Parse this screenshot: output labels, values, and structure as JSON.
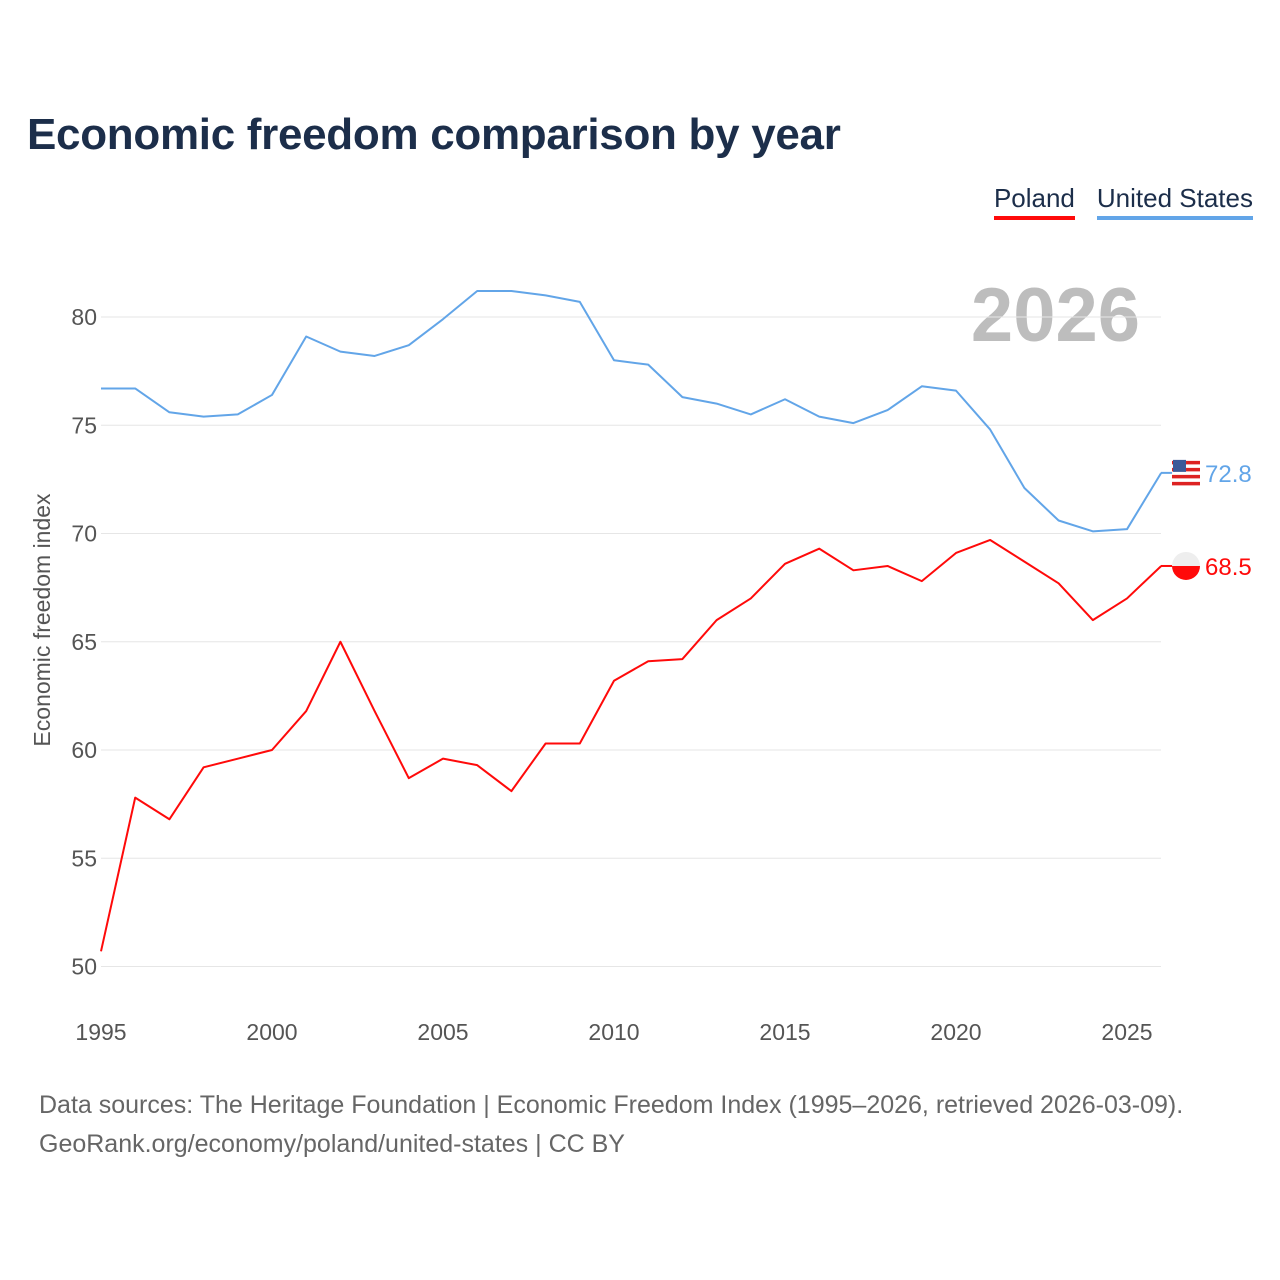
{
  "title": "Economic freedom comparison by year",
  "footer": {
    "line1": "Data sources: The Heritage Foundation | Economic Freedom Index (1995–2026, retrieved 2026-03-09).",
    "line2": "GeoRank.org/economy/poland/united-states | CC BY"
  },
  "chart_data": {
    "type": "line",
    "title": "Economic freedom comparison by year",
    "ylabel": "Economic freedom index",
    "xlabel": "",
    "year_watermark": "2026",
    "x": [
      1995,
      1996,
      1997,
      1998,
      1999,
      2000,
      2001,
      2002,
      2003,
      2004,
      2005,
      2006,
      2007,
      2008,
      2009,
      2010,
      2011,
      2012,
      2013,
      2014,
      2015,
      2016,
      2017,
      2018,
      2019,
      2020,
      2021,
      2022,
      2023,
      2024,
      2025,
      2026
    ],
    "xlim": [
      1995,
      2026
    ],
    "ylim": [
      48,
      82
    ],
    "xticks": [
      "1995",
      "2000",
      "2005",
      "2010",
      "2015",
      "2020",
      "2025"
    ],
    "yticks": [
      "50",
      "55",
      "60",
      "65",
      "70",
      "75",
      "80"
    ],
    "grid": true,
    "legend_position": "top-right",
    "series": [
      {
        "name": "Poland",
        "color": "#ff0a0a",
        "end_label": "68.5",
        "flag": "poland-flag",
        "values": [
          50.7,
          57.8,
          56.8,
          59.2,
          59.6,
          60.0,
          61.8,
          65.0,
          61.8,
          58.7,
          59.6,
          59.3,
          58.1,
          60.3,
          60.3,
          63.2,
          64.1,
          64.2,
          66.0,
          67.0,
          68.6,
          69.3,
          68.3,
          68.5,
          67.8,
          69.1,
          69.7,
          68.7,
          67.7,
          66.0,
          67.0,
          68.5
        ]
      },
      {
        "name": "United States",
        "color": "#62a5e8",
        "end_label": "72.8",
        "flag": "united-states-flag",
        "values": [
          76.7,
          76.7,
          75.6,
          75.4,
          75.5,
          76.4,
          79.1,
          78.4,
          78.2,
          78.7,
          79.9,
          81.2,
          81.2,
          81.0,
          80.7,
          78.0,
          77.8,
          76.3,
          76.0,
          75.5,
          76.2,
          75.4,
          75.1,
          75.7,
          76.8,
          76.6,
          74.8,
          72.1,
          70.6,
          70.1,
          70.2,
          72.8
        ]
      }
    ]
  }
}
